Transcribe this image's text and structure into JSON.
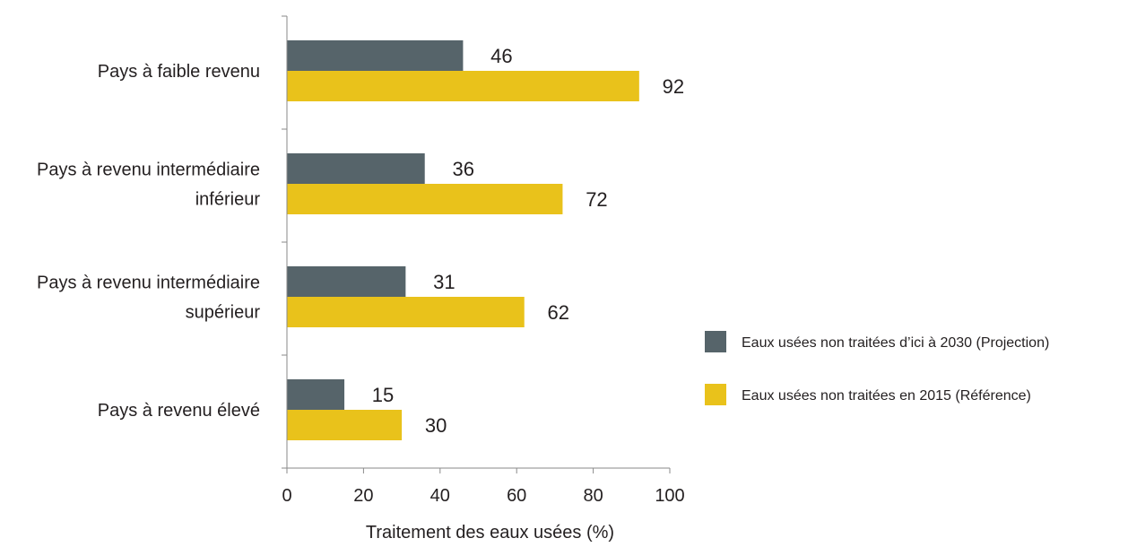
{
  "chart_data": {
    "type": "bar",
    "orientation": "horizontal",
    "categories": [
      [
        "Pays à faible revenu"
      ],
      [
        "Pays à revenu intermédiaire",
        "inférieur"
      ],
      [
        "Pays à revenu intermédiaire",
        "supérieur"
      ],
      [
        "Pays à revenu élevé"
      ]
    ],
    "series": [
      {
        "name": "Eaux usées non traitées d’ici à 2030 (Projection)",
        "color": "#56646a",
        "values": [
          46,
          36,
          31,
          15
        ]
      },
      {
        "name": "Eaux usées non traitées en 2015 (Référence)",
        "color": "#e9c21b",
        "values": [
          92,
          72,
          62,
          30
        ]
      }
    ],
    "xlabel": "Traitement des eaux usées (%)",
    "xlim": [
      0,
      100
    ],
    "xticks": [
      0,
      20,
      40,
      60,
      80,
      100
    ],
    "legend_position": "right",
    "grid": false
  }
}
